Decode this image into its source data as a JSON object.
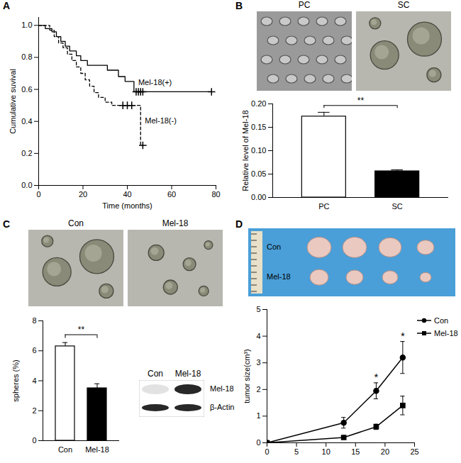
{
  "chart_data": [
    {
      "panel": "A",
      "type": "line",
      "x_label": "Time (months)",
      "y_label": "Cumulative suvival",
      "xlim": [
        0,
        80
      ],
      "xticks": [
        0,
        20,
        40,
        60,
        80
      ],
      "ylim": [
        0,
        1.05
      ],
      "yticks": [
        {
          "value": 0,
          "label": "0.0"
        },
        {
          "value": 0.2,
          "label": "0.2"
        },
        {
          "value": 0.4,
          "label": "0.4"
        },
        {
          "value": 0.6,
          "label": "0.6"
        },
        {
          "value": 0.8,
          "label": "0.8"
        },
        {
          "value": 1,
          "label": "1.0"
        }
      ],
      "series": [
        {
          "name": "Mel-18(+)",
          "color": "#000000",
          "line_style": "solid",
          "marker": "plus",
          "x": [
            0,
            3,
            6,
            8,
            10,
            12,
            14,
            17,
            19,
            22,
            31,
            36,
            39,
            43,
            78
          ],
          "values": [
            1.0,
            0.98,
            0.96,
            0.93,
            0.9,
            0.87,
            0.84,
            0.81,
            0.78,
            0.75,
            0.72,
            0.68,
            0.65,
            0.585,
            0.585
          ],
          "censored": {
            "x": [
              44,
              45,
              46,
              47,
              78
            ],
            "values": [
              0.585,
              0.585,
              0.585,
              0.585,
              0.585
            ]
          }
        },
        {
          "name": "Mel-18(-)",
          "color": "#000000",
          "line_style": "dashed",
          "marker": "plus",
          "x": [
            0,
            5,
            7,
            9,
            11,
            13,
            15,
            17,
            19,
            21,
            23,
            25,
            27,
            30,
            33,
            46,
            47
          ],
          "values": [
            1.0,
            0.97,
            0.93,
            0.89,
            0.86,
            0.82,
            0.78,
            0.74,
            0.7,
            0.66,
            0.62,
            0.58,
            0.55,
            0.52,
            0.5,
            0.25,
            0.25
          ],
          "censored": {
            "x": [
              38,
              40,
              42,
              47
            ],
            "values": [
              0.5,
              0.5,
              0.5,
              0.25
            ]
          }
        }
      ]
    },
    {
      "panel": "B",
      "type": "bar",
      "image_labels": [
        "PC",
        "SC"
      ],
      "categories": [
        "PC",
        "SC"
      ],
      "values": [
        0.173,
        0.056
      ],
      "errors": [
        0.009,
        0.003
      ],
      "colors": [
        "#ffffff",
        "#000000"
      ],
      "y_label": "Relative level of Mel-18",
      "ylim": [
        0,
        0.2
      ],
      "yticks": [
        {
          "value": 0,
          "label": "0.00"
        },
        {
          "value": 0.05,
          "label": "0.05"
        },
        {
          "value": 0.1,
          "label": "0.10"
        },
        {
          "value": 0.15,
          "label": "0.15"
        },
        {
          "value": 0.2,
          "label": "0.20"
        }
      ],
      "significance": {
        "label": "**",
        "between": [
          "PC",
          "SC"
        ]
      }
    },
    {
      "panel": "C",
      "type": "bar",
      "image_labels": [
        "Con",
        "Mel-18"
      ],
      "categories": [
        "Con",
        "Mel-18"
      ],
      "values": [
        6.3,
        3.5
      ],
      "errors": [
        0.25,
        0.3
      ],
      "colors": [
        "#ffffff",
        "#000000"
      ],
      "y_label": "spheres (%)",
      "ylim": [
        0,
        8
      ],
      "yticks": [
        0,
        2,
        4,
        6,
        8
      ],
      "significance": {
        "label": "**",
        "between": [
          "Con",
          "Mel-18"
        ]
      },
      "blot": {
        "columns": [
          "Con",
          "Mel-18"
        ],
        "rows": [
          "Mel-18",
          "β-Actin"
        ]
      }
    },
    {
      "panel": "D",
      "type": "line",
      "image_labels": [
        "Con",
        "Mel-18"
      ],
      "y_label": "tumor size(cm³)",
      "xlim": [
        0,
        25
      ],
      "xticks": [
        0,
        5,
        10,
        15,
        20,
        25
      ],
      "ylim": [
        0,
        5
      ],
      "yticks": [
        0,
        1,
        2,
        3,
        4,
        5
      ],
      "legend": "top-right",
      "series": [
        {
          "name": "Con",
          "color": "#000000",
          "marker": "circle",
          "line_style": "solid",
          "x": [
            0,
            13,
            18.5,
            23
          ],
          "values": [
            0,
            0.75,
            1.95,
            3.2
          ],
          "errors": [
            0,
            0.2,
            0.3,
            0.6
          ]
        },
        {
          "name": "Mel-18",
          "color": "#000000",
          "marker": "square",
          "line_style": "solid",
          "x": [
            0,
            13,
            18.5,
            23
          ],
          "values": [
            0,
            0.2,
            0.6,
            1.4
          ],
          "errors": [
            0,
            0.05,
            0.1,
            0.35
          ]
        }
      ],
      "annotations": [
        {
          "text": "*",
          "x": 18.5,
          "y": 2.45
        },
        {
          "text": "*",
          "x": 23,
          "y": 4.0
        }
      ]
    }
  ]
}
